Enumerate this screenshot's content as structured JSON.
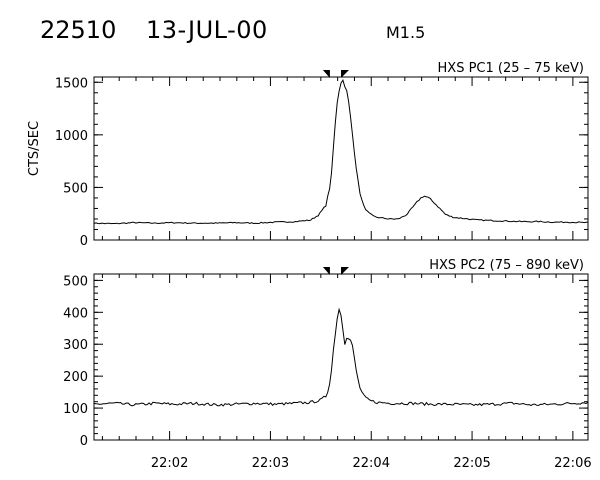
{
  "header": {
    "event_id": "22510",
    "date": "13-JUL-00",
    "flare_class": "M1.5"
  },
  "chart_data": [
    {
      "type": "line",
      "title": "HXS PC1 (25 – 75 keV)",
      "ylabel": "CTS/SEC",
      "xlabel": "",
      "x_unit": "UT time (minutes after 22:00)",
      "xlim": [
        1.25,
        6.15
      ],
      "ylim": [
        0,
        1550
      ],
      "yticks": [
        0,
        500,
        1000,
        1500
      ],
      "xtick_labels": [],
      "markers": [
        3.58,
        3.71
      ],
      "series": [
        {
          "points": [
            [
              1.25,
              160
            ],
            [
              1.45,
              155
            ],
            [
              1.65,
              165
            ],
            [
              1.85,
              160
            ],
            [
              2.05,
              165
            ],
            [
              2.25,
              160
            ],
            [
              2.45,
              160
            ],
            [
              2.65,
              165
            ],
            [
              2.85,
              160
            ],
            [
              3.05,
              170
            ],
            [
              3.25,
              175
            ],
            [
              3.4,
              190
            ],
            [
              3.48,
              240
            ],
            [
              3.55,
              330
            ],
            [
              3.6,
              550
            ],
            [
              3.63,
              950
            ],
            [
              3.66,
              1300
            ],
            [
              3.69,
              1480
            ],
            [
              3.71,
              1530
            ],
            [
              3.73,
              1500
            ],
            [
              3.75,
              1440
            ],
            [
              3.77,
              1350
            ],
            [
              3.79,
              1200
            ],
            [
              3.82,
              950
            ],
            [
              3.85,
              700
            ],
            [
              3.88,
              480
            ],
            [
              3.92,
              330
            ],
            [
              3.97,
              260
            ],
            [
              4.03,
              220
            ],
            [
              4.1,
              210
            ],
            [
              4.18,
              200
            ],
            [
              4.27,
              200
            ],
            [
              4.35,
              240
            ],
            [
              4.42,
              320
            ],
            [
              4.48,
              390
            ],
            [
              4.52,
              420
            ],
            [
              4.57,
              400
            ],
            [
              4.62,
              360
            ],
            [
              4.68,
              300
            ],
            [
              4.74,
              240
            ],
            [
              4.82,
              215
            ],
            [
              4.92,
              205
            ],
            [
              5.05,
              190
            ],
            [
              5.2,
              185
            ],
            [
              5.35,
              180
            ],
            [
              5.5,
              175
            ],
            [
              5.65,
              175
            ],
            [
              5.8,
              170
            ],
            [
              5.95,
              170
            ],
            [
              6.15,
              165
            ]
          ]
        }
      ]
    },
    {
      "type": "line",
      "title": "HXS PC2 (75 – 890 keV)",
      "ylabel": "",
      "xlabel": "",
      "x_unit": "UT time (minutes after 22:00)",
      "xlim": [
        1.25,
        6.15
      ],
      "ylim": [
        0,
        520
      ],
      "yticks": [
        0,
        100,
        200,
        300,
        400,
        500
      ],
      "xtick_labels": [
        "22:02",
        "22:03",
        "22:04",
        "22:05",
        "22:06"
      ],
      "markers": [
        3.58,
        3.71
      ],
      "series": [
        {
          "points": [
            [
              1.25,
              112
            ],
            [
              1.45,
              115
            ],
            [
              1.65,
              110
            ],
            [
              1.85,
              115
            ],
            [
              2.05,
              112
            ],
            [
              2.25,
              115
            ],
            [
              2.45,
              110
            ],
            [
              2.65,
              112
            ],
            [
              2.85,
              115
            ],
            [
              3.05,
              112
            ],
            [
              3.25,
              115
            ],
            [
              3.4,
              118
            ],
            [
              3.5,
              125
            ],
            [
              3.56,
              140
            ],
            [
              3.6,
              200
            ],
            [
              3.63,
              300
            ],
            [
              3.66,
              380
            ],
            [
              3.68,
              410
            ],
            [
              3.7,
              395
            ],
            [
              3.72,
              350
            ],
            [
              3.74,
              300
            ],
            [
              3.76,
              330
            ],
            [
              3.78,
              310
            ],
            [
              3.8,
              315
            ],
            [
              3.82,
              280
            ],
            [
              3.85,
              220
            ],
            [
              3.88,
              170
            ],
            [
              3.92,
              140
            ],
            [
              3.97,
              125
            ],
            [
              4.05,
              118
            ],
            [
              4.2,
              115
            ],
            [
              4.4,
              115
            ],
            [
              4.6,
              112
            ],
            [
              4.8,
              112
            ],
            [
              5.0,
              110
            ],
            [
              5.2,
              112
            ],
            [
              5.4,
              115
            ],
            [
              5.6,
              110
            ],
            [
              5.8,
              112
            ],
            [
              6.0,
              115
            ],
            [
              6.15,
              118
            ]
          ]
        }
      ]
    }
  ]
}
